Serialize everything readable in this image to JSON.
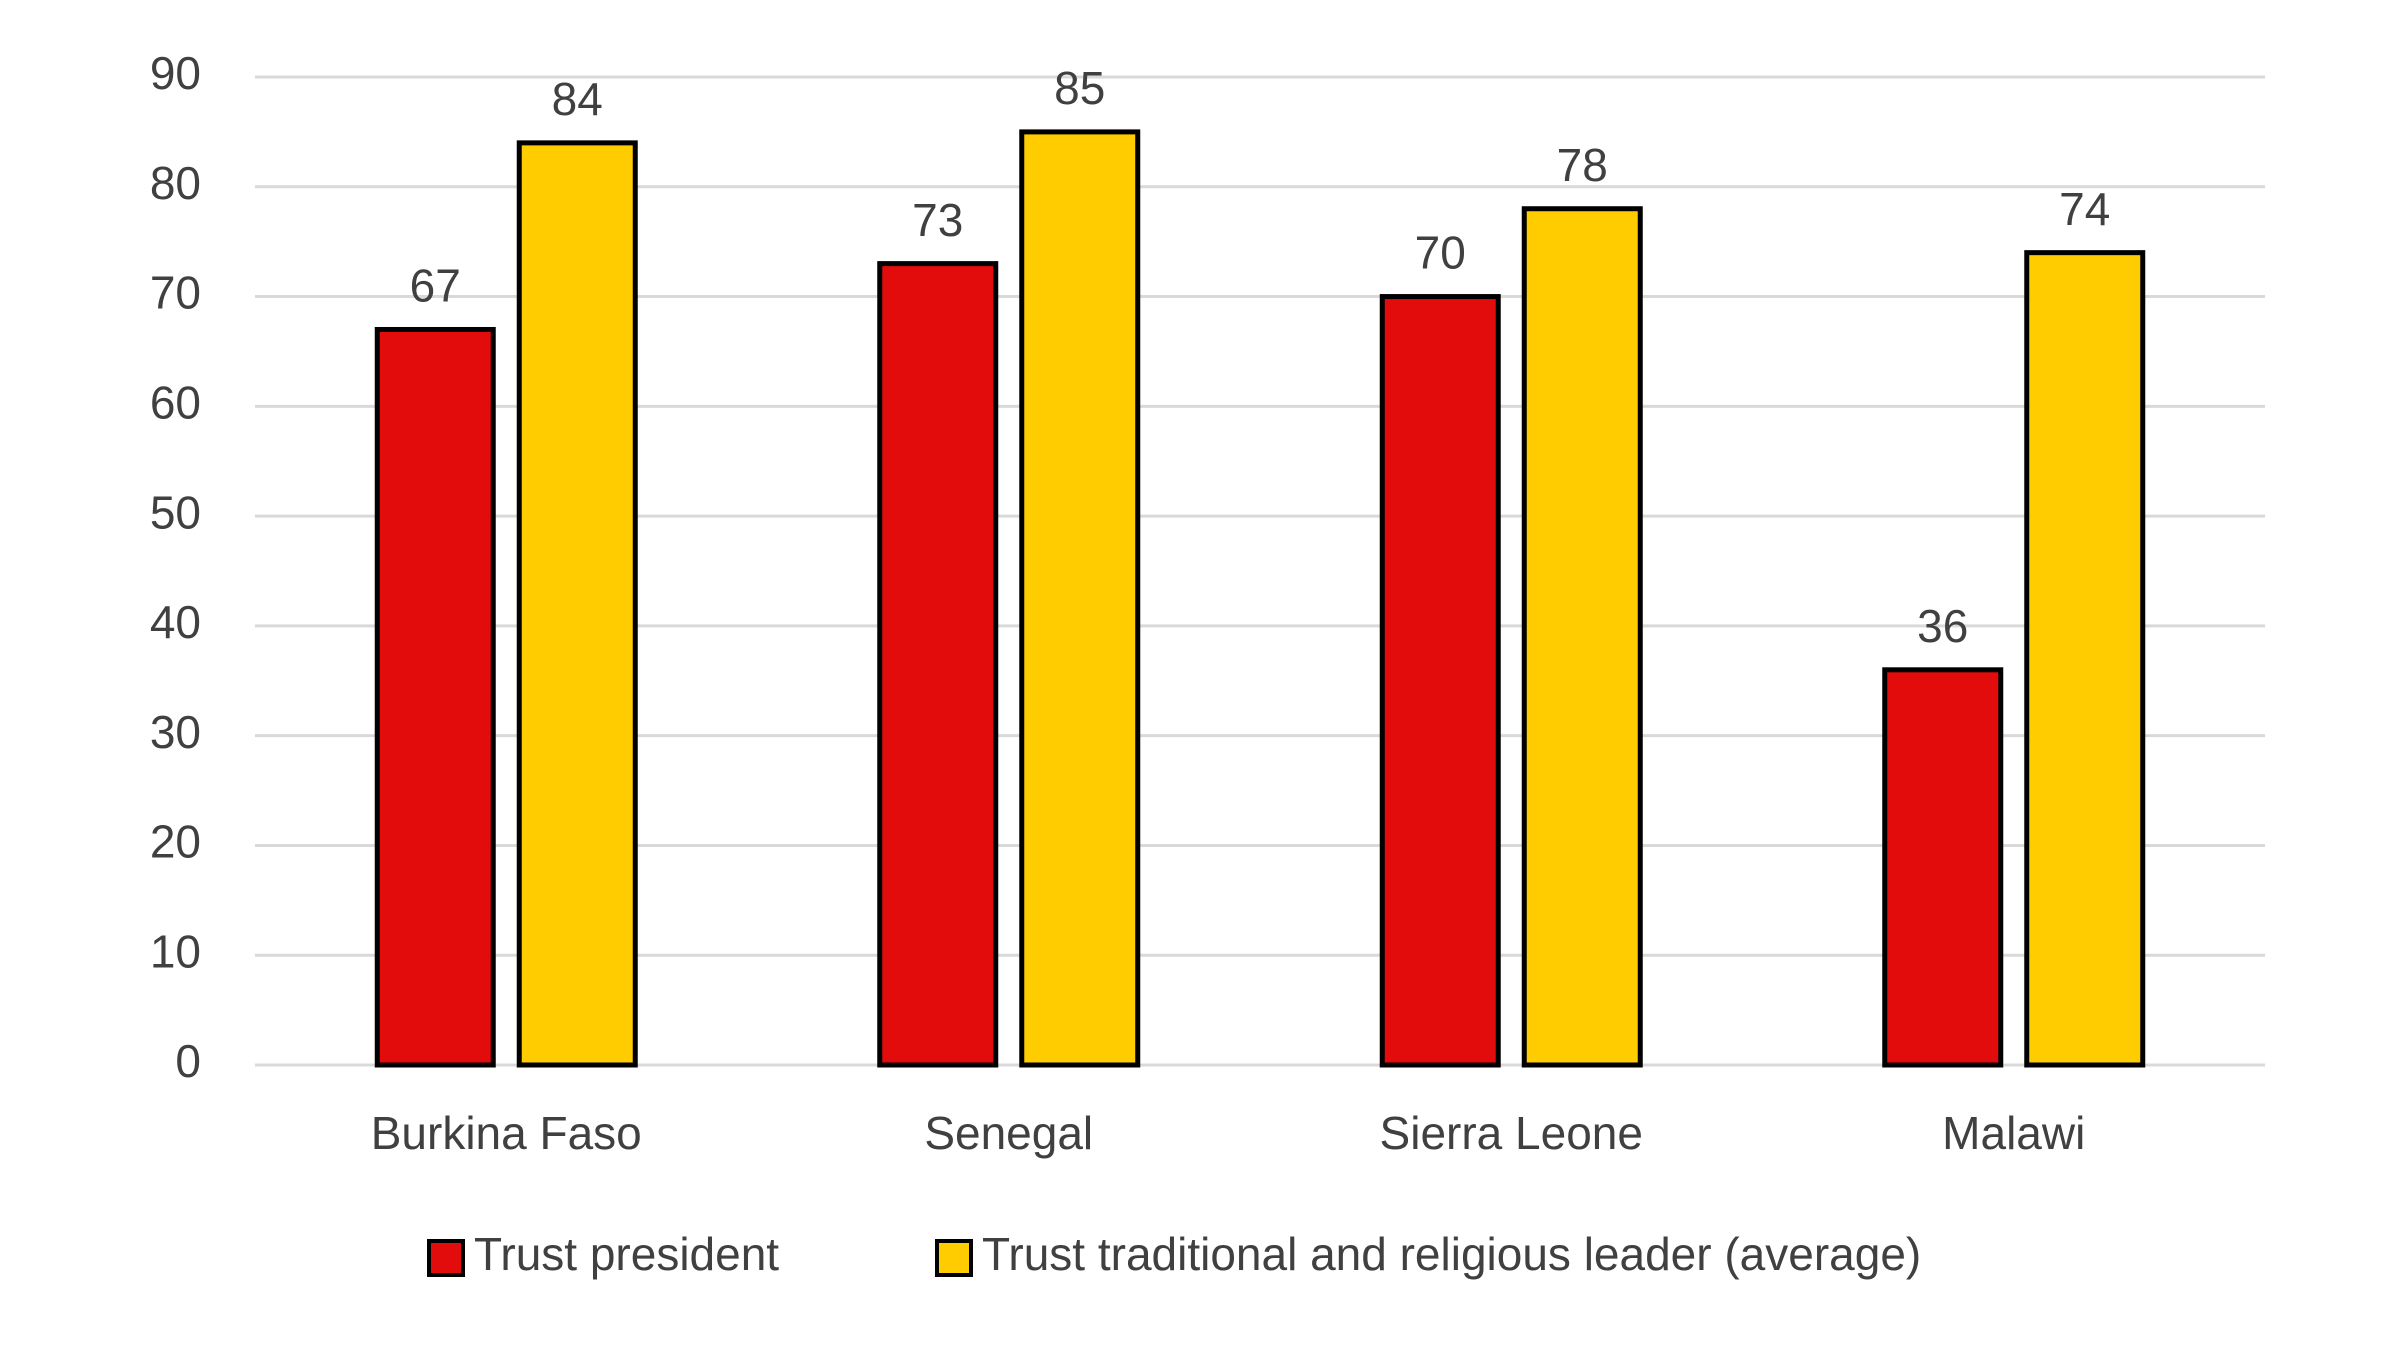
{
  "chart_data": {
    "type": "bar",
    "categories": [
      "Burkina Faso",
      "Senegal",
      "Sierra Leone",
      "Malawi"
    ],
    "series": [
      {
        "name": "Trust president",
        "color": "#e30c0c",
        "values": [
          67,
          73,
          70,
          36
        ]
      },
      {
        "name": "Trust traditional and religious leader (average)",
        "color": "#ffcc00",
        "values": [
          84,
          85,
          78,
          74
        ]
      }
    ],
    "ylim": [
      0,
      90
    ],
    "yticks": [
      0,
      10,
      20,
      30,
      40,
      50,
      60,
      70,
      80,
      90
    ],
    "grid": true,
    "legend": "bottom"
  }
}
